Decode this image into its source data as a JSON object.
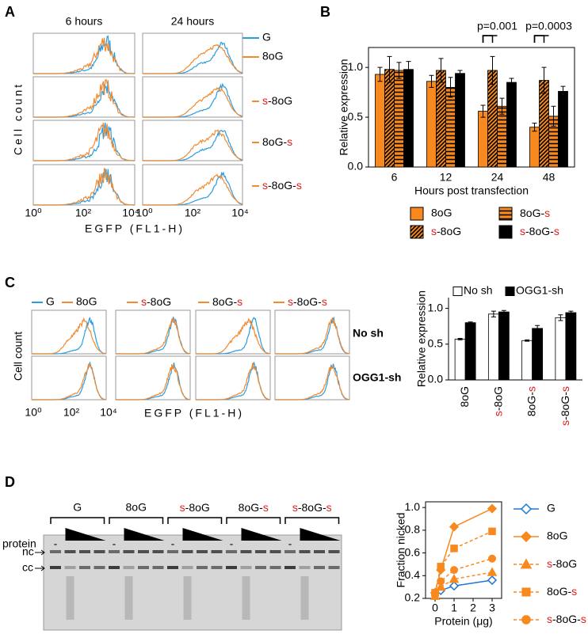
{
  "panel_labels": [
    "A",
    "B",
    "C",
    "D"
  ],
  "flow_a": {
    "columns": [
      "6 hours",
      "24 hours"
    ],
    "legend": [
      "G",
      "8oG",
      "s-8oG",
      "8oG-s",
      "s-8oG-s"
    ],
    "y_label": "Cell count",
    "x_label": "EGFP (FL1-H)",
    "x_tick_labels": [
      "10⁰",
      "10²",
      "10⁴"
    ]
  },
  "flow_c": {
    "legend": [
      "G",
      "8oG",
      "s-8oG",
      "8oG-s",
      "s-8oG-s"
    ],
    "rows": [
      "No sh",
      "OGG1-sh"
    ],
    "y_label": "Cell count",
    "x_label": "EGFP (FL1-H)",
    "x_tick_labels": [
      "10⁰",
      "10²",
      "10⁴"
    ]
  },
  "gel": {
    "samples": [
      "G",
      "8oG",
      "s-8oG",
      "8oG-s",
      "s-8oG-s"
    ],
    "protein": "protein",
    "no_protein": "-",
    "bands": [
      "nc",
      "cc"
    ]
  },
  "chart_data": [
    {
      "type": "bar",
      "y_label": "Relative expression",
      "x_label": "Hours post transfection",
      "categories": [
        "6",
        "12",
        "24",
        "48"
      ],
      "ylim": [
        0,
        1.2
      ],
      "yticks": [
        {
          "value": 0,
          "label": "0.0"
        },
        {
          "value": 0.5,
          "label": "0.5"
        },
        {
          "value": 1,
          "label": "1.0"
        }
      ],
      "annotations": [
        "p=0.001",
        "p=0.0003"
      ],
      "series": [
        {
          "name": "8oG",
          "color": "#f7891f",
          "values": [
            0.93,
            0.86,
            0.56,
            0.4
          ],
          "errors": [
            0.07,
            0.06,
            0.06,
            0.04
          ]
        },
        {
          "name": "s-8oG",
          "color": "#f7891f",
          "hatch": "diagonal",
          "values": [
            0.98,
            0.97,
            0.97,
            0.87
          ],
          "errors": [
            0.13,
            0.12,
            0.14,
            0.13
          ]
        },
        {
          "name": "8oG-s",
          "color": "#f7891f",
          "hatch": "horizontal",
          "values": [
            0.97,
            0.8,
            0.61,
            0.51
          ],
          "errors": [
            0.08,
            0.1,
            0.08,
            0.1
          ]
        },
        {
          "name": "s-8oG-s",
          "color": "#000000",
          "values": [
            0.98,
            0.94,
            0.85,
            0.76
          ],
          "errors": [
            0.08,
            0.03,
            0.04,
            0.05
          ]
        }
      ]
    },
    {
      "type": "bar",
      "y_label": "Relative expression",
      "categories": [
        "8oG",
        "s-8oG",
        "8oG-s",
        "s-8oG-s"
      ],
      "ylim": [
        0,
        1.15
      ],
      "yticks": [
        {
          "value": 0,
          "label": "0.0"
        },
        {
          "value": 0.5,
          "label": "0.5"
        },
        {
          "value": 1,
          "label": "1.0"
        }
      ],
      "series": [
        {
          "name": "No sh",
          "color": "#ffffff",
          "values": [
            0.57,
            0.92,
            0.55,
            0.87
          ],
          "errors": [
            0.01,
            0.04,
            0.01,
            0.04
          ]
        },
        {
          "name": "OGG1-sh",
          "color": "#000000",
          "values": [
            0.8,
            0.95,
            0.72,
            0.94
          ],
          "errors": [
            0.01,
            0.02,
            0.04,
            0.02
          ]
        }
      ]
    },
    {
      "type": "line",
      "y_label": "Fraction nicked",
      "x_label": "Protein (μg)",
      "x": [
        0,
        0.3,
        1,
        3
      ],
      "xlim": [
        -0.5,
        3.5
      ],
      "xticks": [
        0,
        1,
        2,
        3
      ],
      "ylim": [
        0.2,
        1.05
      ],
      "yticks": [
        0.2,
        0.4,
        0.6,
        0.8,
        {
          "value": 1,
          "label": "1.0"
        }
      ],
      "series": [
        {
          "name": "G",
          "color": "#1f78d1",
          "marker": "diamond",
          "filled": false,
          "dashed": false,
          "values": [
            0.25,
            0.27,
            0.31,
            0.36
          ]
        },
        {
          "name": "8oG",
          "color": "#f7891f",
          "marker": "diamond",
          "filled": true,
          "dashed": false,
          "values": [
            0.25,
            0.45,
            0.83,
            0.99
          ]
        },
        {
          "name": "s-8oG",
          "color": "#f7891f",
          "marker": "triangle",
          "filled": true,
          "dashed": true,
          "values": [
            0.22,
            0.3,
            0.37,
            0.43
          ]
        },
        {
          "name": "8oG-s",
          "color": "#f7891f",
          "marker": "square",
          "filled": true,
          "dashed": true,
          "values": [
            0.25,
            0.48,
            0.64,
            0.79
          ]
        },
        {
          "name": "s-8oG-s",
          "color": "#f7891f",
          "marker": "circle",
          "filled": true,
          "dashed": true,
          "values": [
            0.23,
            0.35,
            0.45,
            0.55
          ]
        }
      ]
    }
  ]
}
